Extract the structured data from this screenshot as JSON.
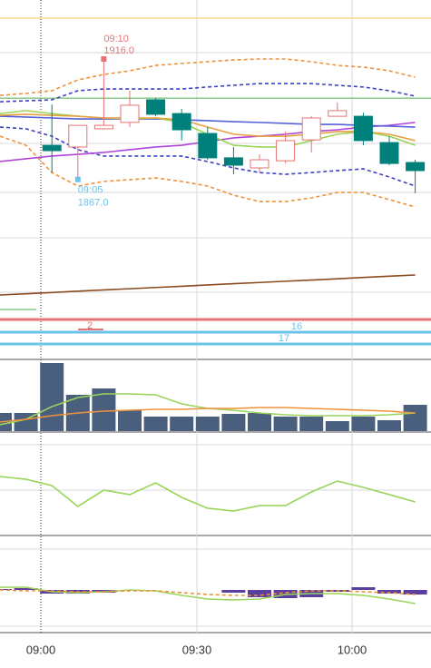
{
  "chart_data": {
    "type": "candlestick",
    "x_labels": [
      "09:00",
      "09:30",
      "10:00"
    ],
    "annotations": [
      {
        "time": "09:10",
        "value": 1916,
        "label": "1916.0",
        "slot": 4,
        "color": "#e57373"
      },
      {
        "time": "09:05",
        "value": 1867,
        "label": "1867.0",
        "slot": 3,
        "color": "#6cc3ea"
      }
    ],
    "levels": [
      {
        "value": 1932.6,
        "color": "#f2c94c"
      },
      {
        "value": 1900.1,
        "color": "#4caf50"
      }
    ],
    "price": {
      "ylim": [
        1844,
        1940
      ],
      "up_color": "#e57373",
      "down_color": "#00807a",
      "open": [
        null,
        null,
        1880.9,
        1880.2,
        1887.6,
        1890.2,
        1899.4,
        1893.8,
        1885.7,
        1875.8,
        1871.7,
        1874.6,
        1883.1,
        1892.7,
        1892.7,
        1882.0,
        1873.9
      ],
      "high": [
        null,
        null,
        1897.5,
        1889.0,
        1916.0,
        1903.1,
        1900.1,
        1895.7,
        1888.3,
        1880.2,
        1877.2,
        1886.5,
        1892.7,
        1898.3,
        1894.2,
        1884.6,
        1875.0
      ],
      "low": [
        null,
        null,
        1869.8,
        1867.0,
        1887.6,
        1888.3,
        1892.7,
        1882.8,
        1875.0,
        1869.1,
        1869.8,
        1873.5,
        1878.0,
        1892.7,
        1880.9,
        1872.8,
        1861.4
      ],
      "close": [
        null,
        null,
        1878.7,
        1889.0,
        1889.0,
        1897.2,
        1893.5,
        1887.2,
        1875.8,
        1872.8,
        1875.0,
        1882.8,
        1892.0,
        1895.0,
        1882.8,
        1873.5,
        1870.6
      ],
      "lines": [
        {
          "color": "#f0913a",
          "dash": true,
          "values": [
            1901.2,
            1902.0,
            1903.1,
            1907.5,
            1909.7,
            1911.2,
            1913.4,
            1914.2,
            1914.9,
            1915.6,
            1916.0,
            1916.0,
            1914.9,
            1913.4,
            1912.7,
            1911.2,
            1908.6
          ]
        },
        {
          "color": "#3f3fc8",
          "dash": true,
          "values": [
            1898.6,
            1899.0,
            1899.4,
            1903.1,
            1903.8,
            1903.8,
            1903.8,
            1903.8,
            1904.6,
            1905.3,
            1906.0,
            1906.0,
            1906.0,
            1905.3,
            1904.6,
            1903.1,
            1900.9
          ]
        },
        {
          "color": "#3f3fc8",
          "dash": true,
          "values": [
            1888.3,
            1887.6,
            1884.6,
            1879.1,
            1876.5,
            1876.5,
            1876.5,
            1876.5,
            1874.3,
            1871.7,
            1869.8,
            1869.1,
            1869.8,
            1870.6,
            1871.3,
            1868.0,
            1864.3
          ]
        },
        {
          "color": "#f0913a",
          "dash": true,
          "values": [
            1884.6,
            1880.9,
            1869.8,
            1864.3,
            1866.2,
            1866.9,
            1867.6,
            1866.2,
            1864.3,
            1860.6,
            1858.0,
            1858.0,
            1859.5,
            1861.7,
            1861.7,
            1858.8,
            1855.8
          ]
        },
        {
          "color": "#b044d8",
          "dash": false,
          "values": [
            1874.3,
            1875.4,
            1876.5,
            1877.2,
            1878.0,
            1879.1,
            1880.2,
            1880.9,
            1882.4,
            1883.9,
            1884.6,
            1885.4,
            1886.5,
            1887.2,
            1888.3,
            1889.0,
            1890.2
          ]
        },
        {
          "color": "#5560d8",
          "dash": false,
          "values": [
            1892.7,
            1892.4,
            1892.0,
            1891.6,
            1891.6,
            1891.6,
            1891.6,
            1891.3,
            1890.9,
            1890.5,
            1890.2,
            1889.8,
            1889.4,
            1889.4,
            1889.0,
            1888.7,
            1888.3
          ]
        },
        {
          "color": "#9ad45a",
          "dash": false,
          "values": [
            1893.8,
            1895.0,
            1893.8,
            1892.7,
            1892.0,
            1891.6,
            1892.0,
            1890.2,
            1885.4,
            1880.9,
            1880.2,
            1880.2,
            1882.8,
            1885.4,
            1886.5,
            1884.6,
            1880.9
          ]
        },
        {
          "color": "#e8a040",
          "dash": false,
          "values": [
            1893.1,
            1893.5,
            1893.1,
            1892.7,
            1892.0,
            1892.0,
            1892.0,
            1891.3,
            1888.3,
            1885.4,
            1884.6,
            1884.6,
            1885.4,
            1886.5,
            1886.5,
            1885.4,
            1882.8
          ]
        }
      ]
    },
    "trend": {
      "ylim": [
        0,
        100
      ],
      "lines": [
        {
          "color": "#8b4a1c",
          "dash": false,
          "values": [
            25,
            26.7,
            28.4,
            30.2,
            31.9,
            33.6,
            35.3,
            37.0,
            38.8,
            40.5,
            42.2,
            43.9,
            45.6,
            47.3,
            49.1,
            50.8,
            52.5
          ]
        }
      ]
    },
    "bands": [
      {
        "color": "#e57373",
        "label": "2"
      },
      {
        "color": "#6cc3ea",
        "label": "16"
      },
      {
        "color": "#6cc3ea",
        "label": "17"
      }
    ],
    "volume": {
      "ylim": [
        0,
        80
      ],
      "color": "#4a5f7e",
      "values": [
        20,
        20,
        75,
        40,
        47,
        23,
        16,
        16,
        16,
        19,
        20,
        16,
        16,
        11,
        16,
        12,
        29
      ],
      "lines": [
        {
          "color": "#9ad45a",
          "dash": false,
          "values": [
            7,
            13,
            27,
            37,
            41,
            41,
            40,
            30,
            25,
            23,
            20,
            18,
            17,
            17,
            17,
            18,
            20
          ]
        },
        {
          "color": "#f0913a",
          "dash": false,
          "values": [
            10,
            13,
            17,
            20,
            22,
            23,
            24,
            24,
            25,
            25,
            26,
            26,
            25,
            24,
            23,
            22,
            20
          ]
        }
      ]
    },
    "oscillator": {
      "ylim": [
        0,
        100
      ],
      "lines": [
        {
          "color": "#9ad45a",
          "dash": false,
          "values": [
            61.9,
            59.0,
            52.4,
            30.5,
            47.6,
            42.9,
            55.2,
            40.0,
            28.6,
            25.7,
            31.4,
            31.4,
            45.7,
            57.1,
            50.5,
            42.9,
            35.2
          ]
        }
      ]
    },
    "macd": {
      "ylim": [
        -45,
        45
      ],
      "color": "#5b3fa0",
      "values": [
        1,
        2,
        -4,
        -4,
        -3,
        0,
        0,
        0,
        0,
        -3,
        -8,
        -9,
        -8,
        -2,
        3,
        -4,
        -5
      ],
      "lines": [
        {
          "color": "#9ad45a",
          "dash": false,
          "values": [
            3,
            3,
            -2,
            -3,
            -2,
            0,
            -1,
            -6,
            -10,
            -11,
            -10,
            -5,
            -4,
            -4,
            -6,
            -10,
            -15
          ]
        },
        {
          "color": "#f0913a",
          "dash": true,
          "values": [
            0,
            -1,
            -1,
            -2,
            -2,
            -1,
            -1,
            -3,
            -5,
            -6,
            -6,
            -3,
            -1,
            -1,
            -2,
            -3,
            -5
          ]
        }
      ]
    }
  }
}
